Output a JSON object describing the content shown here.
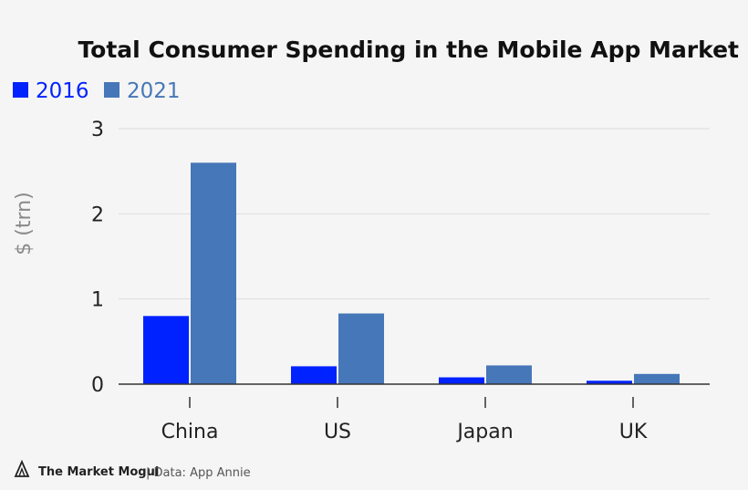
{
  "colors": {
    "background": "#f5f5f5",
    "series_2016": "#0022ff",
    "series_2021": "#4677b8",
    "grid": "#dcdcdc",
    "axis": "#333333",
    "brand_icon": "#222222"
  },
  "chart_data": {
    "type": "bar",
    "title": "Total Consumer Spending in the Mobile App Market",
    "xlabel": "",
    "ylabel": "$ (trn)",
    "categories": [
      "China",
      "US",
      "Japan",
      "UK"
    ],
    "series": [
      {
        "name": "2016",
        "values": [
          0.8,
          0.21,
          0.08,
          0.04
        ]
      },
      {
        "name": "2021",
        "values": [
          2.6,
          0.83,
          0.22,
          0.12
        ]
      }
    ],
    "ylim": [
      0,
      3
    ],
    "yticks": [
      "0",
      "1",
      "2",
      "3"
    ],
    "grid": true,
    "legend": "top-left"
  },
  "footer": {
    "brand": "The Market Mogul",
    "source": "| Data: App Annie"
  }
}
